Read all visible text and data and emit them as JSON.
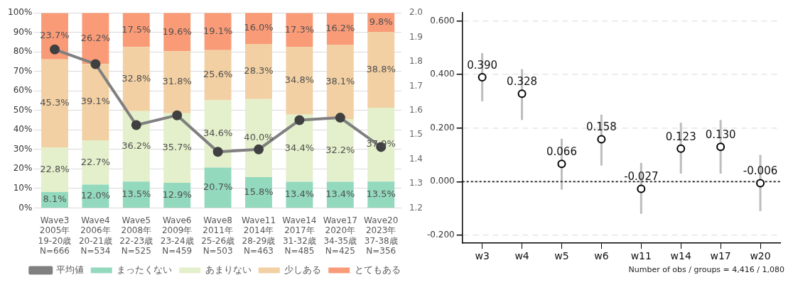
{
  "chart_data": [
    {
      "type": "bar",
      "stacked": true,
      "categories": [
        "Wave3\n2005年\n19-20歳\nN=666",
        "Wave4\n2006年\n20-21歳\nN=534",
        "Wave5\n2008年\n22-23歳\nN=525",
        "Wave6\n2009年\n23-24歳\nN=459",
        "Wave8\n2011年\n25-26歳\nN=503",
        "Wave11\n2014年\n28-29歳\nN=463",
        "Wave14\n2017年\n31-32歳\nN=485",
        "Wave17\n2020年\n34-35歳\nN=425",
        "Wave20\n2023年\n37-38歳\nN=356"
      ],
      "series": [
        {
          "name": "まったくない",
          "color": "#93d9bd",
          "values": [
            8.1,
            12.0,
            13.5,
            12.9,
            20.7,
            15.8,
            13.4,
            13.4,
            13.5
          ],
          "value_labels": [
            "8.1%",
            "12.0%",
            "13.5%",
            "12.9%",
            "20.7%",
            "15.8%",
            "13.4%",
            "13.4%",
            "13.5%"
          ]
        },
        {
          "name": "あまりない",
          "color": "#e4efcb",
          "values": [
            22.8,
            22.7,
            36.2,
            35.7,
            34.6,
            40.0,
            34.4,
            32.2,
            37.9
          ],
          "value_labels": [
            "22.8%",
            "22.7%",
            "36.2%",
            "35.7%",
            "34.6%",
            "40.0%",
            "34.4%",
            "32.2%",
            "37.9%"
          ]
        },
        {
          "name": "少しある",
          "color": "#f2d0a3",
          "values": [
            45.3,
            39.1,
            32.8,
            31.8,
            25.6,
            28.3,
            34.8,
            38.1,
            38.8
          ],
          "value_labels": [
            "45.3%",
            "39.1%",
            "32.8%",
            "31.8%",
            "25.6%",
            "28.3%",
            "34.8%",
            "38.1%",
            "38.8%"
          ]
        },
        {
          "name": "とてもある",
          "color": "#fa9b78",
          "values": [
            23.7,
            26.2,
            17.5,
            19.6,
            19.1,
            16.0,
            17.3,
            16.2,
            9.8
          ],
          "value_labels": [
            "23.7%",
            "26.2%",
            "17.5%",
            "19.6%",
            "19.1%",
            "16.0%",
            "17.3%",
            "16.2%",
            "9.8%"
          ]
        },
        {
          "name": "平均値",
          "type": "line",
          "axis": "y2",
          "color": "#808080",
          "marker": "circle",
          "values": [
            1.85,
            1.79,
            1.54,
            1.58,
            1.43,
            1.44,
            1.56,
            1.57,
            1.45
          ]
        }
      ],
      "ylim": [
        0,
        100
      ],
      "yticks": [
        {
          "value": 0,
          "label": "0%"
        },
        {
          "value": 10,
          "label": "10%"
        },
        {
          "value": 20,
          "label": "20%"
        },
        {
          "value": 30,
          "label": "30%"
        },
        {
          "value": 40,
          "label": "40%"
        },
        {
          "value": 50,
          "label": "50%"
        },
        {
          "value": 60,
          "label": "60%"
        },
        {
          "value": 70,
          "label": "70%"
        },
        {
          "value": 80,
          "label": "80%"
        },
        {
          "value": 90,
          "label": "90%"
        },
        {
          "value": 100,
          "label": "100%"
        }
      ],
      "y2lim": [
        1.2,
        2.0
      ],
      "y2ticks": [
        1.2,
        1.3,
        1.4,
        1.5,
        1.6,
        1.7,
        1.8,
        1.9,
        {
          "value": 2.0,
          "label": "2.0"
        }
      ],
      "grid": "y",
      "legend": "bottom"
    },
    {
      "type": "scatter",
      "categories": [
        "w3",
        "w4",
        "w5",
        "w6",
        "w11",
        "w14",
        "w17",
        "w20"
      ],
      "color": "#000000",
      "marker": "circle",
      "values": [
        0.39,
        0.328,
        0.066,
        0.158,
        -0.027,
        0.123,
        0.13,
        -0.006
      ],
      "value_labels": [
        "0.390",
        "0.328",
        "0.066",
        "0.158",
        "-0.027",
        "0.123",
        "0.130",
        "-0.006"
      ],
      "errors": [
        [
          0.3,
          0.48
        ],
        [
          0.23,
          0.42
        ],
        [
          -0.03,
          0.16
        ],
        [
          0.06,
          0.25
        ],
        [
          -0.12,
          0.07
        ],
        [
          0.03,
          0.22
        ],
        [
          0.03,
          0.23
        ],
        [
          -0.11,
          0.1
        ]
      ],
      "ylim": [
        -0.23,
        0.63
      ],
      "yticks": [
        {
          "value": -0.2,
          "label": "-0.200"
        },
        {
          "value": 0,
          "label": "0.000"
        },
        {
          "value": 0.2,
          "label": "0.200"
        },
        {
          "value": 0.4,
          "label": "0.400"
        },
        {
          "value": 0.6,
          "label": "0.600"
        }
      ],
      "grid": "y",
      "ref_lines": [
        {
          "axis": "y",
          "value": 0,
          "line_style": "dotted",
          "color": "#333333"
        }
      ],
      "annotations": [
        "Number of obs / groups = 4,416 / 1,080"
      ]
    }
  ]
}
